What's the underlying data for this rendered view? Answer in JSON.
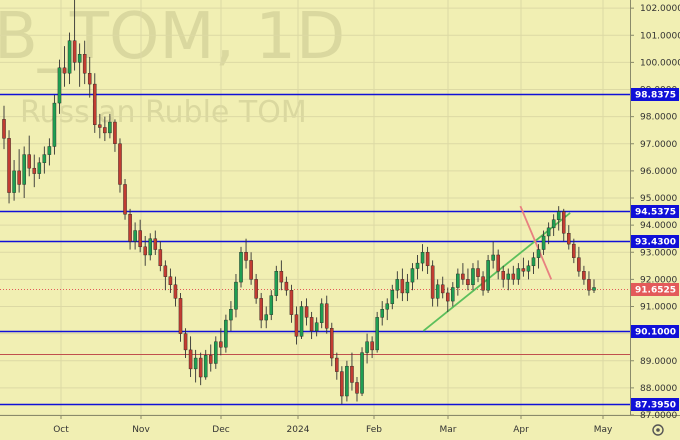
{
  "watermark": {
    "symbol": "B_TOM, 1D",
    "name": "Russian Ruble TOM"
  },
  "chart_data": {
    "type": "candlestick",
    "title": "",
    "xlabel": "",
    "ylabel": "",
    "ylim": [
      87.0,
      102.3
    ],
    "y_ticks": [
      "87.0000",
      "88.0000",
      "89.0000",
      "90.0000",
      "91.0000",
      "92.0000",
      "93.0000",
      "94.0000",
      "95.0000",
      "96.0000",
      "97.0000",
      "98.0000",
      "99.0000",
      "100.0000",
      "101.0000",
      "102.0000"
    ],
    "x_ticks": [
      "Oct",
      "Nov",
      "Dec",
      "2024",
      "Feb",
      "Mar",
      "Apr",
      "May"
    ],
    "horizontal_levels": [
      {
        "value": 98.8375,
        "label": "98.8375",
        "color": "#1010d8"
      },
      {
        "value": 94.5375,
        "label": "94.5375",
        "color": "#1010d8"
      },
      {
        "value": 93.43,
        "label": "93.4300",
        "color": "#1010d8"
      },
      {
        "value": 90.1,
        "label": "90.1000",
        "color": "#1010d8"
      },
      {
        "value": 87.395,
        "label": "87.3950",
        "color": "#1010d8"
      },
      {
        "value": 89.25,
        "label": "",
        "color": "#c0504d"
      }
    ],
    "last_price": {
      "value": 91.6525,
      "label": "91.6525",
      "color": "#e35a5a"
    },
    "trendlines": [
      {
        "color": "#5cbf5c",
        "from": [
          0.672,
          90.1
        ],
        "to": [
          0.905,
          94.45
        ]
      },
      {
        "color": "#e88080",
        "from": [
          0.826,
          94.7
        ],
        "to": [
          0.875,
          92.0
        ]
      }
    ],
    "candles": [
      [
        97.9,
        98.4,
        96.8,
        97.2
      ],
      [
        97.2,
        97.5,
        94.8,
        95.2
      ],
      [
        95.2,
        96.4,
        94.9,
        96.0
      ],
      [
        96.0,
        96.8,
        95.2,
        95.5
      ],
      [
        95.5,
        96.9,
        95.0,
        96.6
      ],
      [
        96.6,
        97.3,
        95.8,
        96.1
      ],
      [
        96.1,
        96.6,
        95.4,
        95.9
      ],
      [
        95.9,
        96.5,
        95.7,
        96.3
      ],
      [
        96.3,
        96.9,
        95.9,
        96.6
      ],
      [
        96.6,
        97.2,
        96.2,
        96.9
      ],
      [
        96.9,
        98.8,
        96.6,
        98.5
      ],
      [
        98.5,
        100.1,
        98.1,
        99.8
      ],
      [
        99.8,
        100.6,
        99.1,
        99.6
      ],
      [
        99.6,
        101.1,
        99.2,
        100.8
      ],
      [
        100.8,
        102.3,
        99.7,
        100.0
      ],
      [
        100.0,
        100.7,
        99.1,
        100.3
      ],
      [
        100.3,
        100.8,
        99.2,
        99.6
      ],
      [
        99.6,
        100.2,
        98.7,
        99.2
      ],
      [
        99.2,
        99.6,
        97.4,
        97.7
      ],
      [
        97.7,
        98.1,
        97.2,
        97.6
      ],
      [
        97.6,
        98.0,
        97.1,
        97.4
      ],
      [
        97.4,
        98.1,
        97.2,
        97.8
      ],
      [
        97.8,
        97.9,
        96.7,
        97.0
      ],
      [
        97.0,
        97.2,
        95.2,
        95.5
      ],
      [
        95.5,
        95.7,
        94.2,
        94.4
      ],
      [
        94.4,
        94.6,
        93.1,
        93.4
      ],
      [
        93.4,
        94.1,
        93.1,
        93.8
      ],
      [
        93.8,
        94.2,
        93.0,
        93.2
      ],
      [
        93.2,
        93.6,
        92.5,
        92.9
      ],
      [
        92.9,
        93.7,
        92.7,
        93.5
      ],
      [
        93.5,
        93.8,
        92.9,
        93.1
      ],
      [
        93.1,
        93.4,
        92.3,
        92.5
      ],
      [
        92.5,
        92.7,
        91.6,
        92.1
      ],
      [
        92.1,
        92.4,
        91.5,
        91.8
      ],
      [
        91.8,
        92.1,
        91.0,
        91.3
      ],
      [
        91.3,
        91.5,
        89.7,
        90.0
      ],
      [
        90.0,
        90.2,
        89.1,
        89.4
      ],
      [
        89.4,
        89.9,
        88.4,
        88.7
      ],
      [
        88.7,
        89.4,
        88.2,
        89.1
      ],
      [
        89.1,
        89.3,
        88.1,
        88.4
      ],
      [
        88.4,
        89.4,
        88.3,
        89.2
      ],
      [
        89.2,
        89.6,
        88.6,
        88.9
      ],
      [
        88.9,
        89.9,
        88.7,
        89.7
      ],
      [
        89.7,
        90.2,
        89.2,
        89.5
      ],
      [
        89.5,
        90.7,
        89.3,
        90.5
      ],
      [
        90.5,
        91.2,
        90.1,
        90.9
      ],
      [
        90.9,
        92.2,
        90.6,
        91.9
      ],
      [
        91.9,
        93.2,
        91.7,
        93.0
      ],
      [
        93.0,
        93.5,
        92.4,
        92.7
      ],
      [
        92.7,
        93.0,
        91.8,
        92.0
      ],
      [
        92.0,
        92.2,
        91.1,
        91.3
      ],
      [
        91.3,
        91.5,
        90.2,
        90.5
      ],
      [
        90.5,
        91.0,
        90.2,
        90.7
      ],
      [
        90.7,
        91.6,
        90.5,
        91.4
      ],
      [
        91.4,
        92.5,
        91.2,
        92.3
      ],
      [
        92.3,
        92.7,
        91.6,
        91.9
      ],
      [
        91.9,
        92.1,
        91.4,
        91.6
      ],
      [
        91.6,
        91.8,
        90.4,
        90.7
      ],
      [
        90.7,
        91.0,
        89.6,
        89.9
      ],
      [
        89.9,
        91.2,
        89.8,
        91.0
      ],
      [
        91.0,
        91.3,
        90.3,
        90.6
      ],
      [
        90.6,
        90.8,
        89.8,
        90.1
      ],
      [
        90.1,
        90.6,
        89.9,
        90.4
      ],
      [
        90.4,
        91.3,
        90.2,
        91.1
      ],
      [
        91.1,
        91.4,
        90.0,
        90.2
      ],
      [
        90.2,
        90.4,
        88.8,
        89.1
      ],
      [
        89.1,
        89.3,
        88.3,
        88.6
      ],
      [
        88.6,
        88.8,
        87.4,
        87.7
      ],
      [
        87.7,
        89.0,
        87.5,
        88.8
      ],
      [
        88.8,
        89.3,
        87.9,
        88.2
      ],
      [
        88.2,
        88.4,
        87.5,
        87.8
      ],
      [
        87.8,
        89.5,
        87.7,
        89.3
      ],
      [
        89.3,
        90.0,
        88.9,
        89.7
      ],
      [
        89.7,
        89.9,
        89.1,
        89.4
      ],
      [
        89.4,
        90.8,
        89.3,
        90.6
      ],
      [
        90.6,
        91.2,
        90.3,
        90.9
      ],
      [
        90.9,
        91.3,
        90.5,
        91.1
      ],
      [
        91.1,
        91.8,
        90.9,
        91.6
      ],
      [
        91.6,
        92.3,
        91.3,
        92.0
      ],
      [
        92.0,
        92.4,
        91.2,
        91.5
      ],
      [
        91.5,
        92.2,
        91.2,
        91.9
      ],
      [
        91.9,
        92.6,
        91.6,
        92.4
      ],
      [
        92.4,
        92.9,
        92.0,
        92.6
      ],
      [
        92.6,
        93.3,
        92.3,
        93.0
      ],
      [
        93.0,
        93.2,
        92.2,
        92.5
      ],
      [
        92.5,
        92.7,
        91.0,
        91.3
      ],
      [
        91.3,
        92.0,
        91.0,
        91.8
      ],
      [
        91.8,
        92.1,
        91.3,
        91.5
      ],
      [
        91.5,
        91.7,
        90.8,
        91.2
      ],
      [
        91.2,
        91.9,
        91.0,
        91.7
      ],
      [
        91.7,
        92.4,
        91.4,
        92.2
      ],
      [
        92.2,
        92.6,
        91.8,
        92.0
      ],
      [
        92.0,
        92.4,
        91.6,
        91.8
      ],
      [
        91.8,
        92.6,
        91.6,
        92.4
      ],
      [
        92.4,
        92.7,
        91.9,
        92.1
      ],
      [
        92.1,
        92.3,
        91.4,
        91.6
      ],
      [
        91.6,
        92.9,
        91.5,
        92.7
      ],
      [
        92.7,
        93.4,
        92.4,
        92.9
      ],
      [
        92.9,
        93.1,
        92.0,
        92.3
      ],
      [
        92.3,
        92.5,
        91.7,
        92.0
      ],
      [
        92.0,
        92.4,
        91.6,
        92.2
      ],
      [
        92.2,
        92.5,
        91.8,
        92.0
      ],
      [
        92.0,
        92.6,
        91.8,
        92.4
      ],
      [
        92.4,
        92.8,
        92.1,
        92.3
      ],
      [
        92.3,
        92.7,
        92.0,
        92.5
      ],
      [
        92.5,
        93.0,
        92.2,
        92.8
      ],
      [
        92.8,
        93.3,
        92.4,
        93.1
      ],
      [
        93.1,
        93.8,
        92.9,
        93.6
      ],
      [
        93.6,
        94.1,
        93.3,
        93.9
      ],
      [
        93.9,
        94.4,
        93.6,
        94.2
      ],
      [
        94.2,
        94.7,
        93.8,
        94.5
      ],
      [
        94.5,
        94.6,
        93.4,
        93.7
      ],
      [
        93.7,
        94.0,
        93.1,
        93.3
      ],
      [
        93.3,
        93.5,
        92.6,
        92.8
      ],
      [
        92.8,
        93.2,
        92.1,
        92.3
      ],
      [
        92.3,
        92.5,
        91.8,
        92.0
      ],
      [
        92.0,
        92.3,
        91.4,
        91.6
      ],
      [
        91.6,
        92.0,
        91.5,
        91.7
      ]
    ]
  }
}
